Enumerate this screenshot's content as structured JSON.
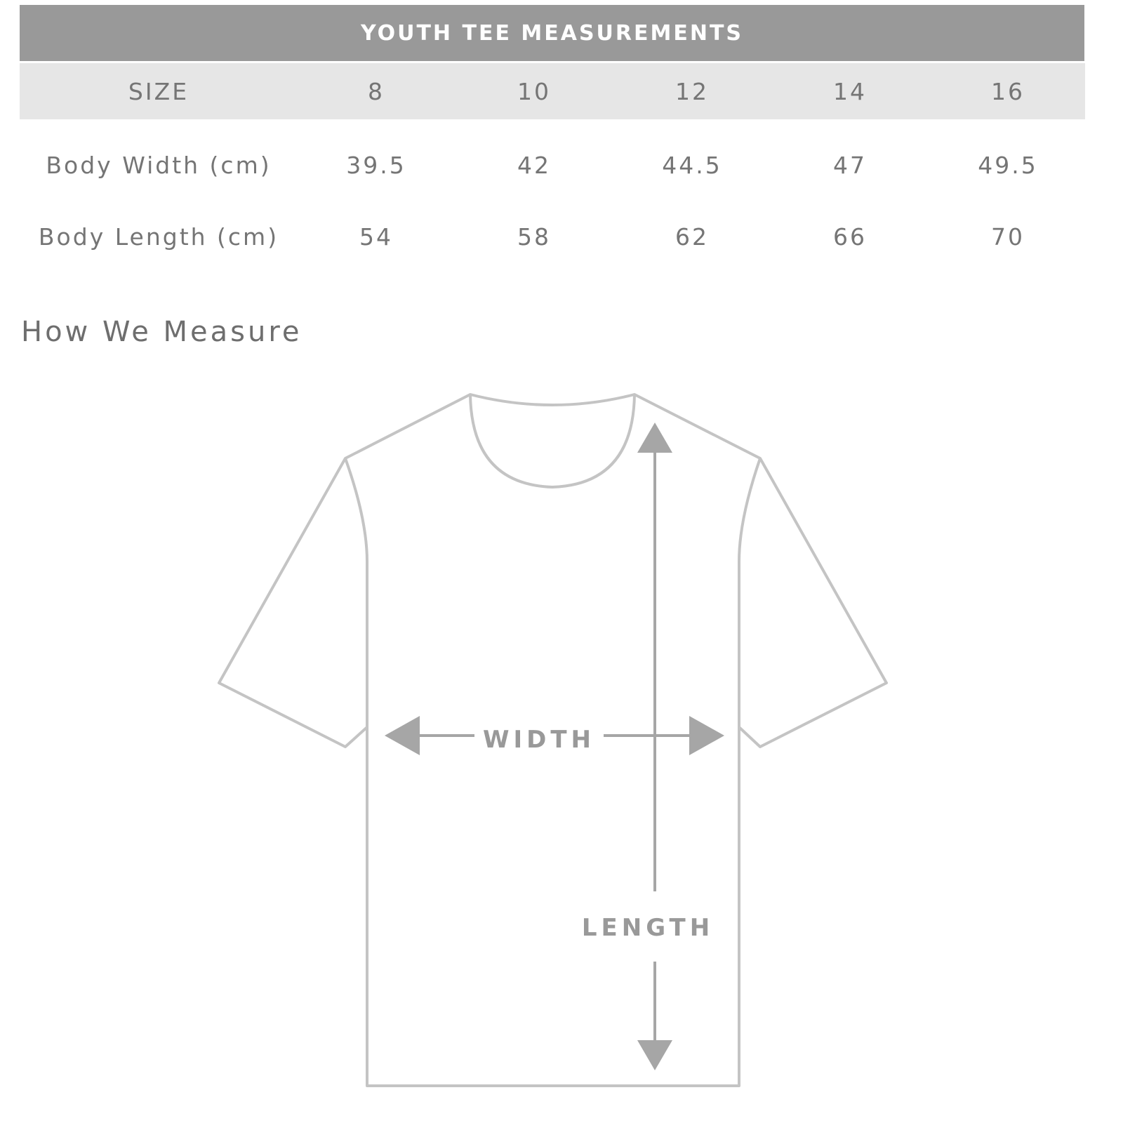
{
  "table": {
    "title": "YOUTH TEE MEASUREMENTS",
    "header": [
      "SIZE",
      "8",
      "10",
      "12",
      "14",
      "16"
    ],
    "rows": [
      {
        "label": "Body Width (cm)",
        "values": [
          "39.5",
          "42",
          "44.5",
          "47",
          "49.5"
        ]
      },
      {
        "label": "Body Length (cm)",
        "values": [
          "54",
          "58",
          "62",
          "66",
          "70"
        ]
      }
    ]
  },
  "diagram": {
    "title": "How We Measure",
    "width_label": "WIDTH",
    "length_label": "LENGTH",
    "colors": {
      "outline": "#c4c4c4",
      "arrow": "#a6a6a6",
      "header": "#999999",
      "size_row": "#e6e6e6"
    }
  }
}
